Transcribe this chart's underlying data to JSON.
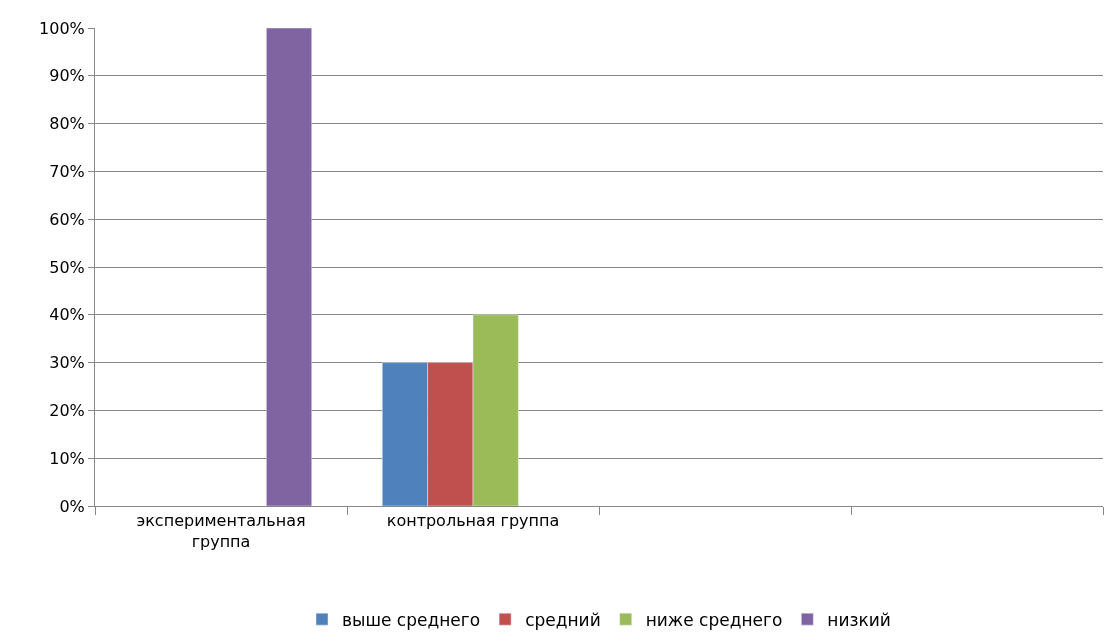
{
  "chart_data": {
    "type": "bar",
    "categories": [
      "экспериментальная группа",
      "контрольная группа",
      null,
      null
    ],
    "series": [
      {
        "name": "выше среднего",
        "color": "#4f81bd",
        "values": [
          null,
          30,
          null,
          null
        ]
      },
      {
        "name": "средний",
        "color": "#c0504d",
        "values": [
          null,
          30,
          null,
          null
        ]
      },
      {
        "name": "ниже среднего",
        "color": "#9bbb59",
        "values": [
          null,
          40,
          null,
          null
        ]
      },
      {
        "name": "низкий",
        "color": "#8064a2",
        "values": [
          100,
          null,
          null,
          null
        ]
      }
    ],
    "ylim": [
      0,
      100
    ],
    "yticks": [
      {
        "value": 0,
        "label": "0%"
      },
      {
        "value": 10,
        "label": "10%"
      },
      {
        "value": 20,
        "label": "20%"
      },
      {
        "value": 30,
        "label": "30%"
      },
      {
        "value": 40,
        "label": "40%"
      },
      {
        "value": 50,
        "label": "50%"
      },
      {
        "value": 60,
        "label": "60%"
      },
      {
        "value": 70,
        "label": "70%"
      },
      {
        "value": 80,
        "label": "80%"
      },
      {
        "value": 90,
        "label": "90%"
      },
      {
        "value": 100,
        "label": "100%"
      }
    ],
    "grid": "y",
    "legend": "bottom"
  }
}
